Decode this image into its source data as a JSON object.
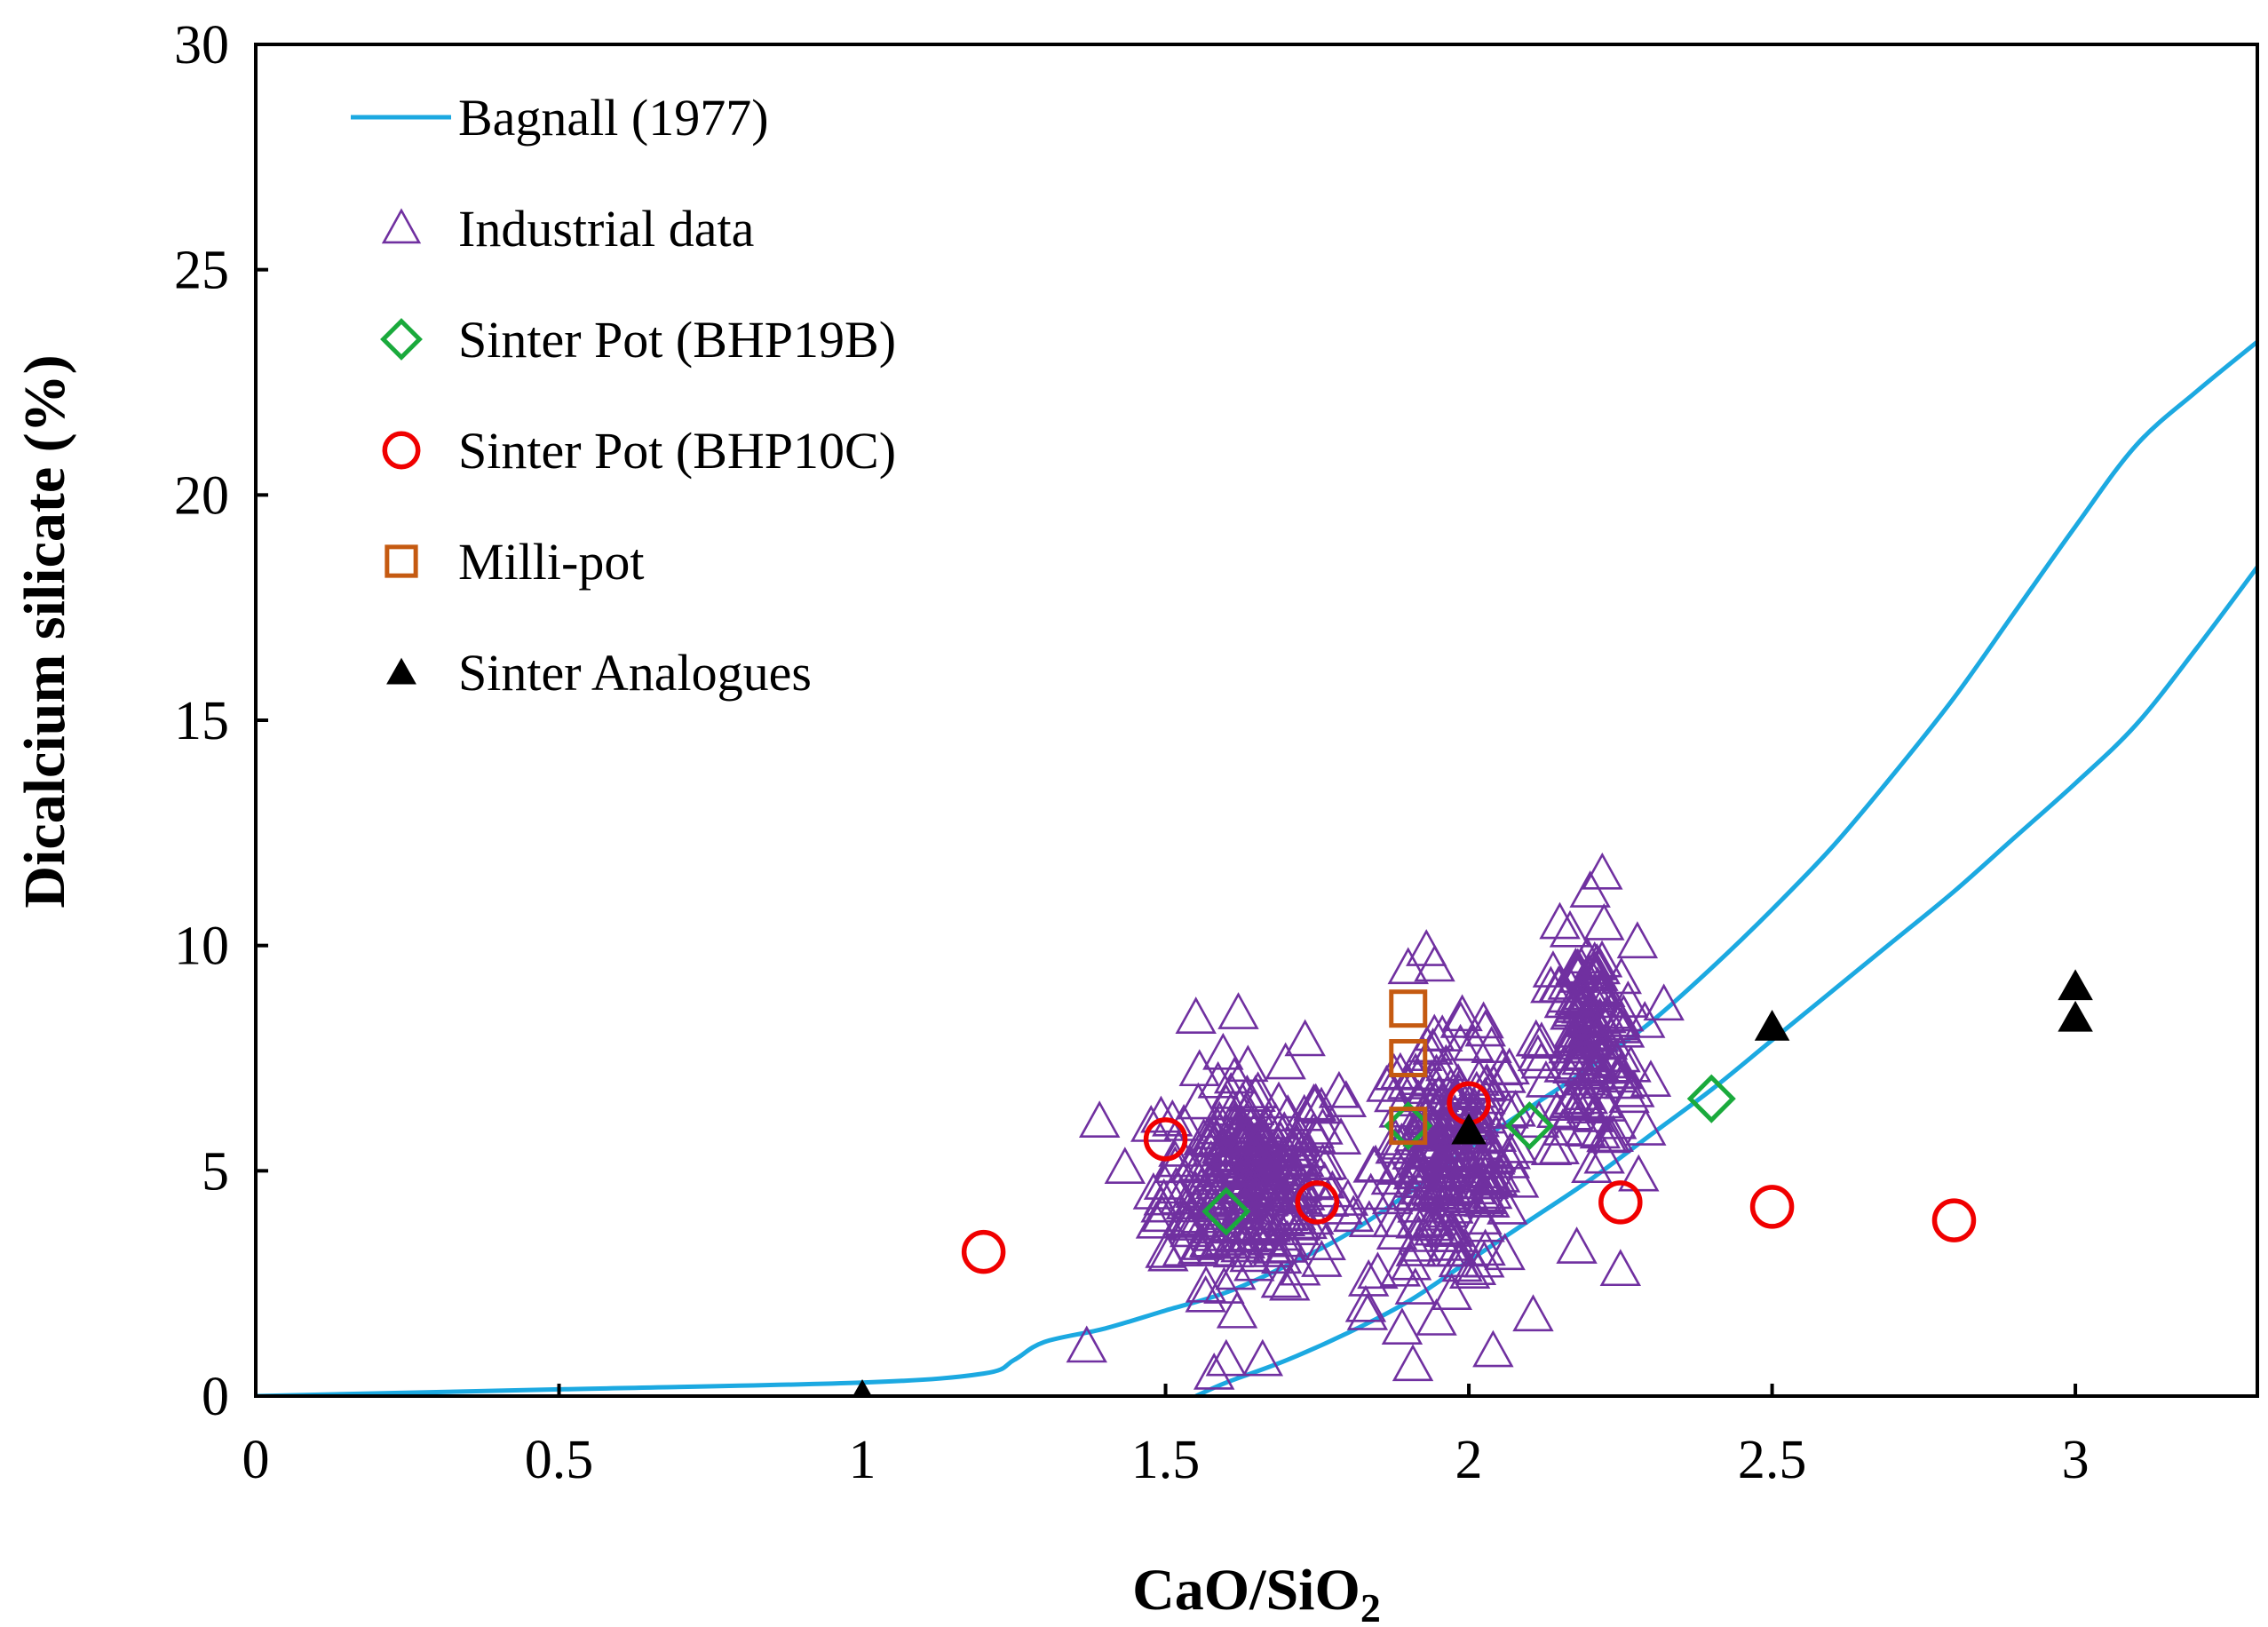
{
  "chart_data": {
    "type": "scatter",
    "xlabel_main": "CaO/SiO",
    "xlabel_sub": "2",
    "ylabel": "Dicalcium silicate (%)",
    "xlim": [
      0,
      3.3
    ],
    "ylim": [
      0,
      30
    ],
    "x_ticks": [
      "0",
      "0.5",
      "1",
      "1.5",
      "2",
      "2.5",
      "3"
    ],
    "y_ticks": [
      "0",
      "5",
      "10",
      "15",
      "20",
      "25",
      "30"
    ],
    "grid": false,
    "legend_position": "top-left",
    "colors": {
      "bagnall": "#1CA9E1",
      "industrial": "#7030A0",
      "bhp19b": "#1AAA3C",
      "bhp10c": "#F00000",
      "millipot": "#C55A11",
      "analogues": "#000000"
    },
    "series": [
      {
        "name": "Bagnall (1977)",
        "marker": "line",
        "lines": [
          {
            "x": [
              0,
              0.5,
              1.0,
              1.2,
              1.25,
              1.3,
              1.4,
              1.5,
              1.6,
              1.7,
              1.8,
              1.9,
              2.0,
              2.1,
              2.2,
              2.3,
              2.4,
              2.5,
              2.6,
              2.7,
              2.8,
              2.9,
              3.0,
              3.1,
              3.2,
              3.3
            ],
            "y": [
              0,
              0.15,
              0.3,
              0.5,
              0.8,
              1.2,
              1.5,
              1.9,
              2.3,
              2.9,
              3.6,
              4.5,
              5.5,
              6.4,
              7.3,
              8.3,
              9.5,
              10.8,
              12.2,
              13.8,
              15.5,
              17.4,
              19.3,
              21.1,
              22.3,
              23.4
            ]
          },
          {
            "x": [
              1.55,
              1.6,
              1.7,
              1.8,
              1.9,
              2.0,
              2.1,
              2.2,
              2.3,
              2.4,
              2.5,
              2.6,
              2.7,
              2.8,
              2.9,
              3.0,
              3.1,
              3.2,
              3.3
            ],
            "y": [
              0,
              0.3,
              0.8,
              1.4,
              2.1,
              3.0,
              3.9,
              4.8,
              5.8,
              6.8,
              7.9,
              9.0,
              10.1,
              11.2,
              12.4,
              13.6,
              14.9,
              16.6,
              18.4
            ]
          }
        ]
      },
      {
        "name": "Industrial data",
        "marker": "open-triangle",
        "clusters": [
          {
            "x_center": 1.64,
            "x_spread": 0.13,
            "y_center": 4.8,
            "y_spread": 1.6,
            "count": 260
          },
          {
            "x_center": 1.97,
            "x_spread": 0.11,
            "y_center": 5.2,
            "y_spread": 1.9,
            "count": 220
          },
          {
            "x_center": 2.2,
            "x_spread": 0.07,
            "y_center": 7.8,
            "y_spread": 1.6,
            "count": 140
          }
        ],
        "points": [
          {
            "x": 1.37,
            "y": 1.1
          },
          {
            "x": 1.58,
            "y": 0.5
          },
          {
            "x": 1.6,
            "y": 0.8
          },
          {
            "x": 1.66,
            "y": 0.8
          },
          {
            "x": 1.55,
            "y": 8.4
          },
          {
            "x": 1.62,
            "y": 8.5
          },
          {
            "x": 1.73,
            "y": 7.9
          },
          {
            "x": 1.9,
            "y": 9.5
          },
          {
            "x": 1.93,
            "y": 9.9
          },
          {
            "x": 2.22,
            "y": 11.6
          },
          {
            "x": 2.2,
            "y": 11.2
          },
          {
            "x": 2.15,
            "y": 10.5
          },
          {
            "x": 2.28,
            "y": 4.9
          },
          {
            "x": 2.25,
            "y": 2.8
          },
          {
            "x": 1.89,
            "y": 1.5
          },
          {
            "x": 2.04,
            "y": 1.0
          },
          {
            "x": 1.5,
            "y": 3.2
          },
          {
            "x": 1.48,
            "y": 4.5
          },
          {
            "x": 2.3,
            "y": 7.0
          },
          {
            "x": 1.83,
            "y": 2.0
          }
        ]
      },
      {
        "name": "Sinter Pot (BHP19B)",
        "marker": "open-diamond",
        "points": [
          {
            "x": 1.6,
            "y": 4.1
          },
          {
            "x": 1.9,
            "y": 6.0
          },
          {
            "x": 2.1,
            "y": 6.0
          },
          {
            "x": 2.4,
            "y": 6.6
          }
        ]
      },
      {
        "name": "Sinter Pot (BHP10C)",
        "marker": "open-circle",
        "points": [
          {
            "x": 1.2,
            "y": 3.2
          },
          {
            "x": 1.5,
            "y": 5.7
          },
          {
            "x": 1.75,
            "y": 4.3
          },
          {
            "x": 2.0,
            "y": 6.5
          },
          {
            "x": 2.25,
            "y": 4.3
          },
          {
            "x": 2.5,
            "y": 4.2
          },
          {
            "x": 2.8,
            "y": 3.9
          }
        ]
      },
      {
        "name": "Milli-pot",
        "marker": "open-square",
        "points": [
          {
            "x": 1.9,
            "y": 8.6
          },
          {
            "x": 1.9,
            "y": 7.5
          },
          {
            "x": 1.9,
            "y": 6.0
          }
        ]
      },
      {
        "name": "Sinter Analogues",
        "marker": "filled-triangle",
        "points": [
          {
            "x": 1.0,
            "y": 0.0
          },
          {
            "x": 2.0,
            "y": 5.9
          },
          {
            "x": 2.5,
            "y": 8.2
          },
          {
            "x": 3.0,
            "y": 9.1
          },
          {
            "x": 3.0,
            "y": 8.4
          }
        ]
      }
    ]
  }
}
